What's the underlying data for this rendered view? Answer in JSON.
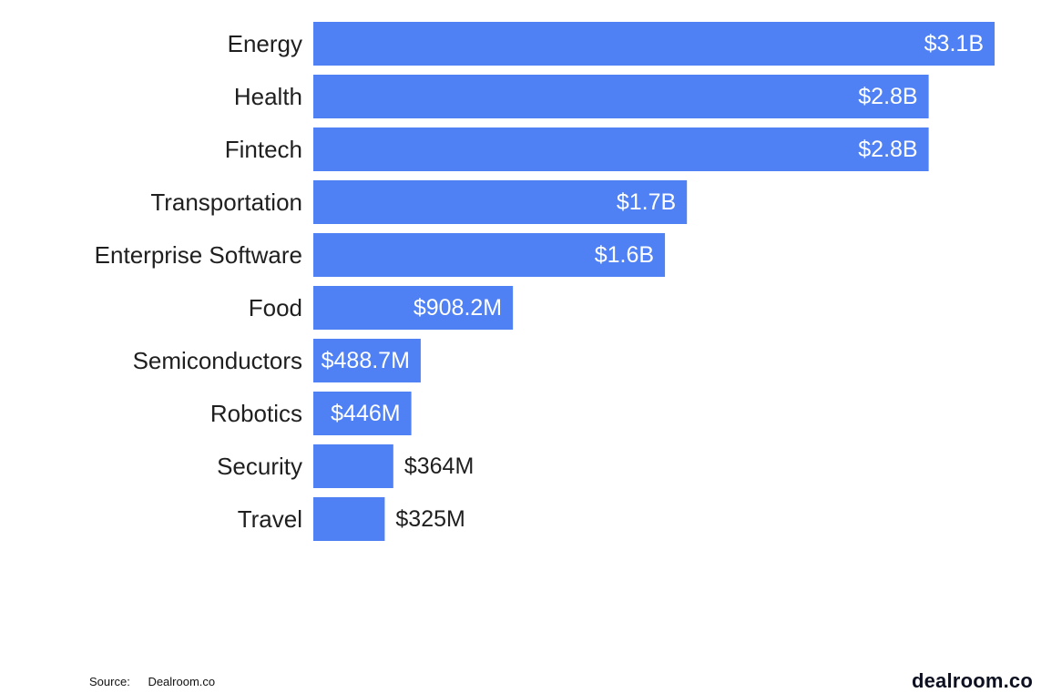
{
  "chart_data": {
    "type": "bar",
    "orientation": "horizontal",
    "title": "",
    "xlabel": "",
    "ylabel": "",
    "unit": "USD",
    "categories": [
      "Energy",
      "Health",
      "Fintech",
      "Transportation",
      "Enterprise Software",
      "Food",
      "Semiconductors",
      "Robotics",
      "Security",
      "Travel"
    ],
    "values": [
      3100000000,
      2800000000,
      2800000000,
      1700000000,
      1600000000,
      908200000,
      488700000,
      446000000,
      364000000,
      325000000
    ],
    "value_labels": [
      "$3.1B",
      "$2.8B",
      "$2.8B",
      "$1.7B",
      "$1.6B",
      "$908.2M",
      "$488.7M",
      "$446M",
      "$364M",
      "$325M"
    ],
    "xlim": [
      0,
      3100000000
    ],
    "grid": false,
    "legend": "none",
    "colors": {
      "bar": "#5081f4",
      "label_inside": "#ffffff",
      "label_outside": "#1f1f1f",
      "category_text": "#1f1f1f"
    }
  },
  "footer": {
    "source_key": "Source:",
    "source_value": "Dealroom.co",
    "brand": "dealroom.co"
  }
}
